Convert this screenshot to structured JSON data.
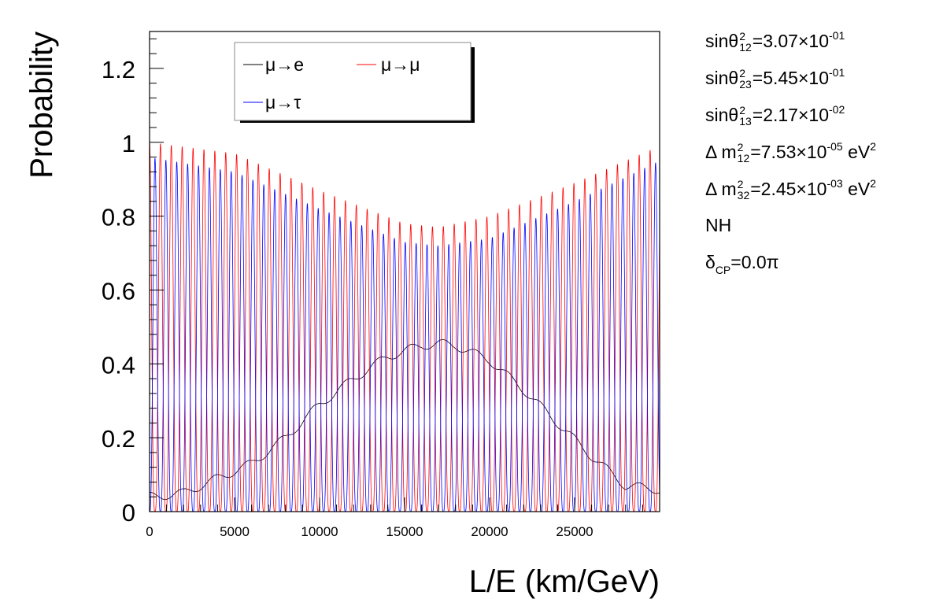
{
  "chart_data": {
    "type": "line",
    "xlabel": "L/E (km/GeV)",
    "ylabel": "Probability",
    "xlim": [
      0,
      30000
    ],
    "ylim": [
      0,
      1.3
    ],
    "x_ticks": [
      "0",
      "5000",
      "10000",
      "15000",
      "20000",
      "25000"
    ],
    "y_ticks": [
      "0",
      "0.2",
      "0.4",
      "0.6",
      "0.8",
      "1",
      "1.2"
    ],
    "legend": {
      "placement": "top-left",
      "entries": [
        "μ→e",
        "μ→μ",
        "μ→τ"
      ]
    },
    "grid": false,
    "series": [
      {
        "name": "μ→e",
        "color": "#000000",
        "description_points": {
          "x": [
            0,
            2000,
            4000,
            6000,
            8000,
            10000,
            12000,
            14000,
            16000,
            17000,
            18000,
            20000,
            22000,
            24000,
            26000,
            28000,
            30000
          ],
          "y": [
            0.04,
            0.05,
            0.09,
            0.13,
            0.2,
            0.29,
            0.36,
            0.42,
            0.45,
            0.455,
            0.45,
            0.41,
            0.33,
            0.24,
            0.15,
            0.07,
            0.06
          ]
        }
      },
      {
        "name": "μ→μ",
        "color": "#ff0000",
        "envelope_max": {
          "x": [
            0,
            5000,
            10000,
            15000,
            17000,
            20000,
            25000,
            30000
          ],
          "y": [
            1.0,
            0.97,
            0.87,
            0.78,
            0.77,
            0.8,
            0.89,
            0.99
          ]
        },
        "min": 0.0
      },
      {
        "name": "μ→τ",
        "color": "#0000ff",
        "envelope_max": {
          "x": [
            0,
            5000,
            10000,
            15000,
            17000,
            20000,
            25000,
            30000
          ],
          "y": [
            0.96,
            0.92,
            0.82,
            0.73,
            0.72,
            0.74,
            0.84,
            0.95
          ]
        },
        "min": 0.0
      }
    ],
    "oscillation_period": 640
  },
  "params": {
    "s12_label": "sinθ",
    "s12_sup": "2",
    "s12_sub": "12",
    "s12_value": "=3.07×10",
    "s12_exp": "-01",
    "s23_label": "sinθ",
    "s23_sup": "2",
    "s23_sub": "23",
    "s23_value": "=5.45×10",
    "s23_exp": "-01",
    "s13_label": "sinθ",
    "s13_sup": "2",
    "s13_sub": "13",
    "s13_value": "=2.17×10",
    "s13_exp": "-02",
    "dm12_label": "Δ m",
    "dm12_sup": "2",
    "dm12_sub": "12",
    "dm12_value": "=7.53×10",
    "dm12_exp": "-05",
    "dm12_unit": " eV",
    "dm12_unit_exp": "2",
    "dm32_label": "Δ m",
    "dm32_sup": "2",
    "dm32_sub": "32",
    "dm32_value": "=2.45×10",
    "dm32_exp": "-03",
    "dm32_unit": " eV",
    "dm32_unit_exp": "2",
    "hierarchy": "NH",
    "dcp_label": "δ",
    "dcp_sub": "CP",
    "dcp_value": "=0.0π"
  }
}
